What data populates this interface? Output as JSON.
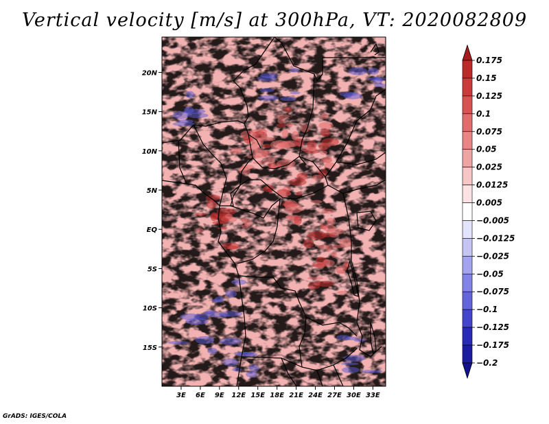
{
  "title": "Vertical velocity [m/s] at 300hPa, VT: 2020082809",
  "credit": "GrADS: IGES/COLA",
  "map": {
    "lon_range": [
      0,
      35
    ],
    "lat_range": [
      -20,
      24.5
    ],
    "lat_ticks": [
      {
        "value": 20,
        "label": "20N"
      },
      {
        "value": 15,
        "label": "15N"
      },
      {
        "value": 10,
        "label": "10N"
      },
      {
        "value": 5,
        "label": "5N"
      },
      {
        "value": 0,
        "label": "EQ"
      },
      {
        "value": -5,
        "label": "5S"
      },
      {
        "value": -10,
        "label": "10S"
      },
      {
        "value": -15,
        "label": "15S"
      }
    ],
    "lon_ticks": [
      {
        "value": 3,
        "label": "3E"
      },
      {
        "value": 6,
        "label": "6E"
      },
      {
        "value": 9,
        "label": "9E"
      },
      {
        "value": 12,
        "label": "12E"
      },
      {
        "value": 15,
        "label": "15E"
      },
      {
        "value": 18,
        "label": "18E"
      },
      {
        "value": 21,
        "label": "21E"
      },
      {
        "value": 24,
        "label": "24E"
      },
      {
        "value": 27,
        "label": "27E"
      },
      {
        "value": 30,
        "label": "30E"
      },
      {
        "value": 33,
        "label": "33E"
      }
    ]
  },
  "colorbar": {
    "labels": [
      "0.175",
      "0.15",
      "0.125",
      "0.1",
      "0.075",
      "0.05",
      "0.025",
      "0.0125",
      "0.005",
      "−0.005",
      "−0.0125",
      "−0.025",
      "−0.05",
      "−0.075",
      "−0.1",
      "−0.125",
      "−0.175",
      "−0.2"
    ],
    "colors": [
      "#a51c1c",
      "#bd2828",
      "#cc3b3b",
      "#d95252",
      "#e06c6c",
      "#e88585",
      "#f0a3a3",
      "#f7c5c5",
      "#fce3e3",
      "#ffffff",
      "#e3e3fc",
      "#c5c5f5",
      "#a3a3ef",
      "#8383e6",
      "#6464dd",
      "#4444cc",
      "#2a2ab8",
      "#1c1ca0",
      "#12128a"
    ]
  }
}
